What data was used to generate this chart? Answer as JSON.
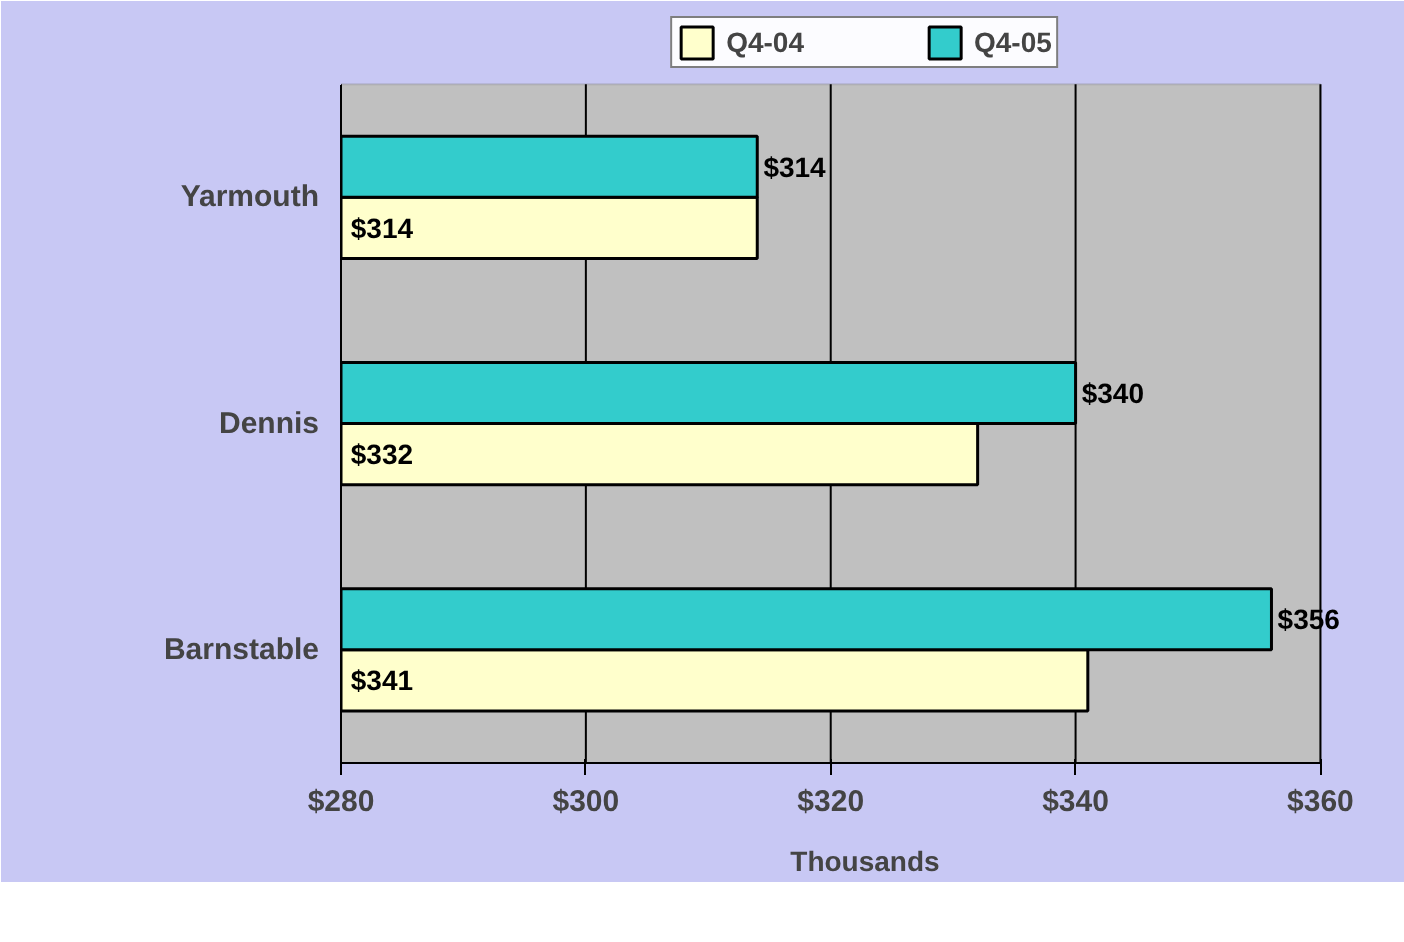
{
  "chart_data": {
    "type": "bar",
    "orientation": "horizontal",
    "categories": [
      "Yarmouth",
      "Dennis",
      "Barnstable"
    ],
    "series": [
      {
        "name": "Q4-04",
        "color": "#ffffcc",
        "values": [
          314,
          332,
          341
        ],
        "value_labels": [
          "$314",
          "$332",
          "$341"
        ]
      },
      {
        "name": "Q4-05",
        "color": "#33cccc",
        "values": [
          314,
          340,
          356
        ],
        "value_labels": [
          "$314",
          "$340",
          "$356"
        ]
      }
    ],
    "xlim": [
      280,
      360
    ],
    "xticks": [
      {
        "value": 280,
        "label": "$280"
      },
      {
        "value": 300,
        "label": "$300"
      },
      {
        "value": 320,
        "label": "$320"
      },
      {
        "value": 340,
        "label": "$340"
      },
      {
        "value": 360,
        "label": "$360"
      }
    ],
    "xlabel": "Thousands",
    "grid": "x",
    "legend": "top"
  }
}
